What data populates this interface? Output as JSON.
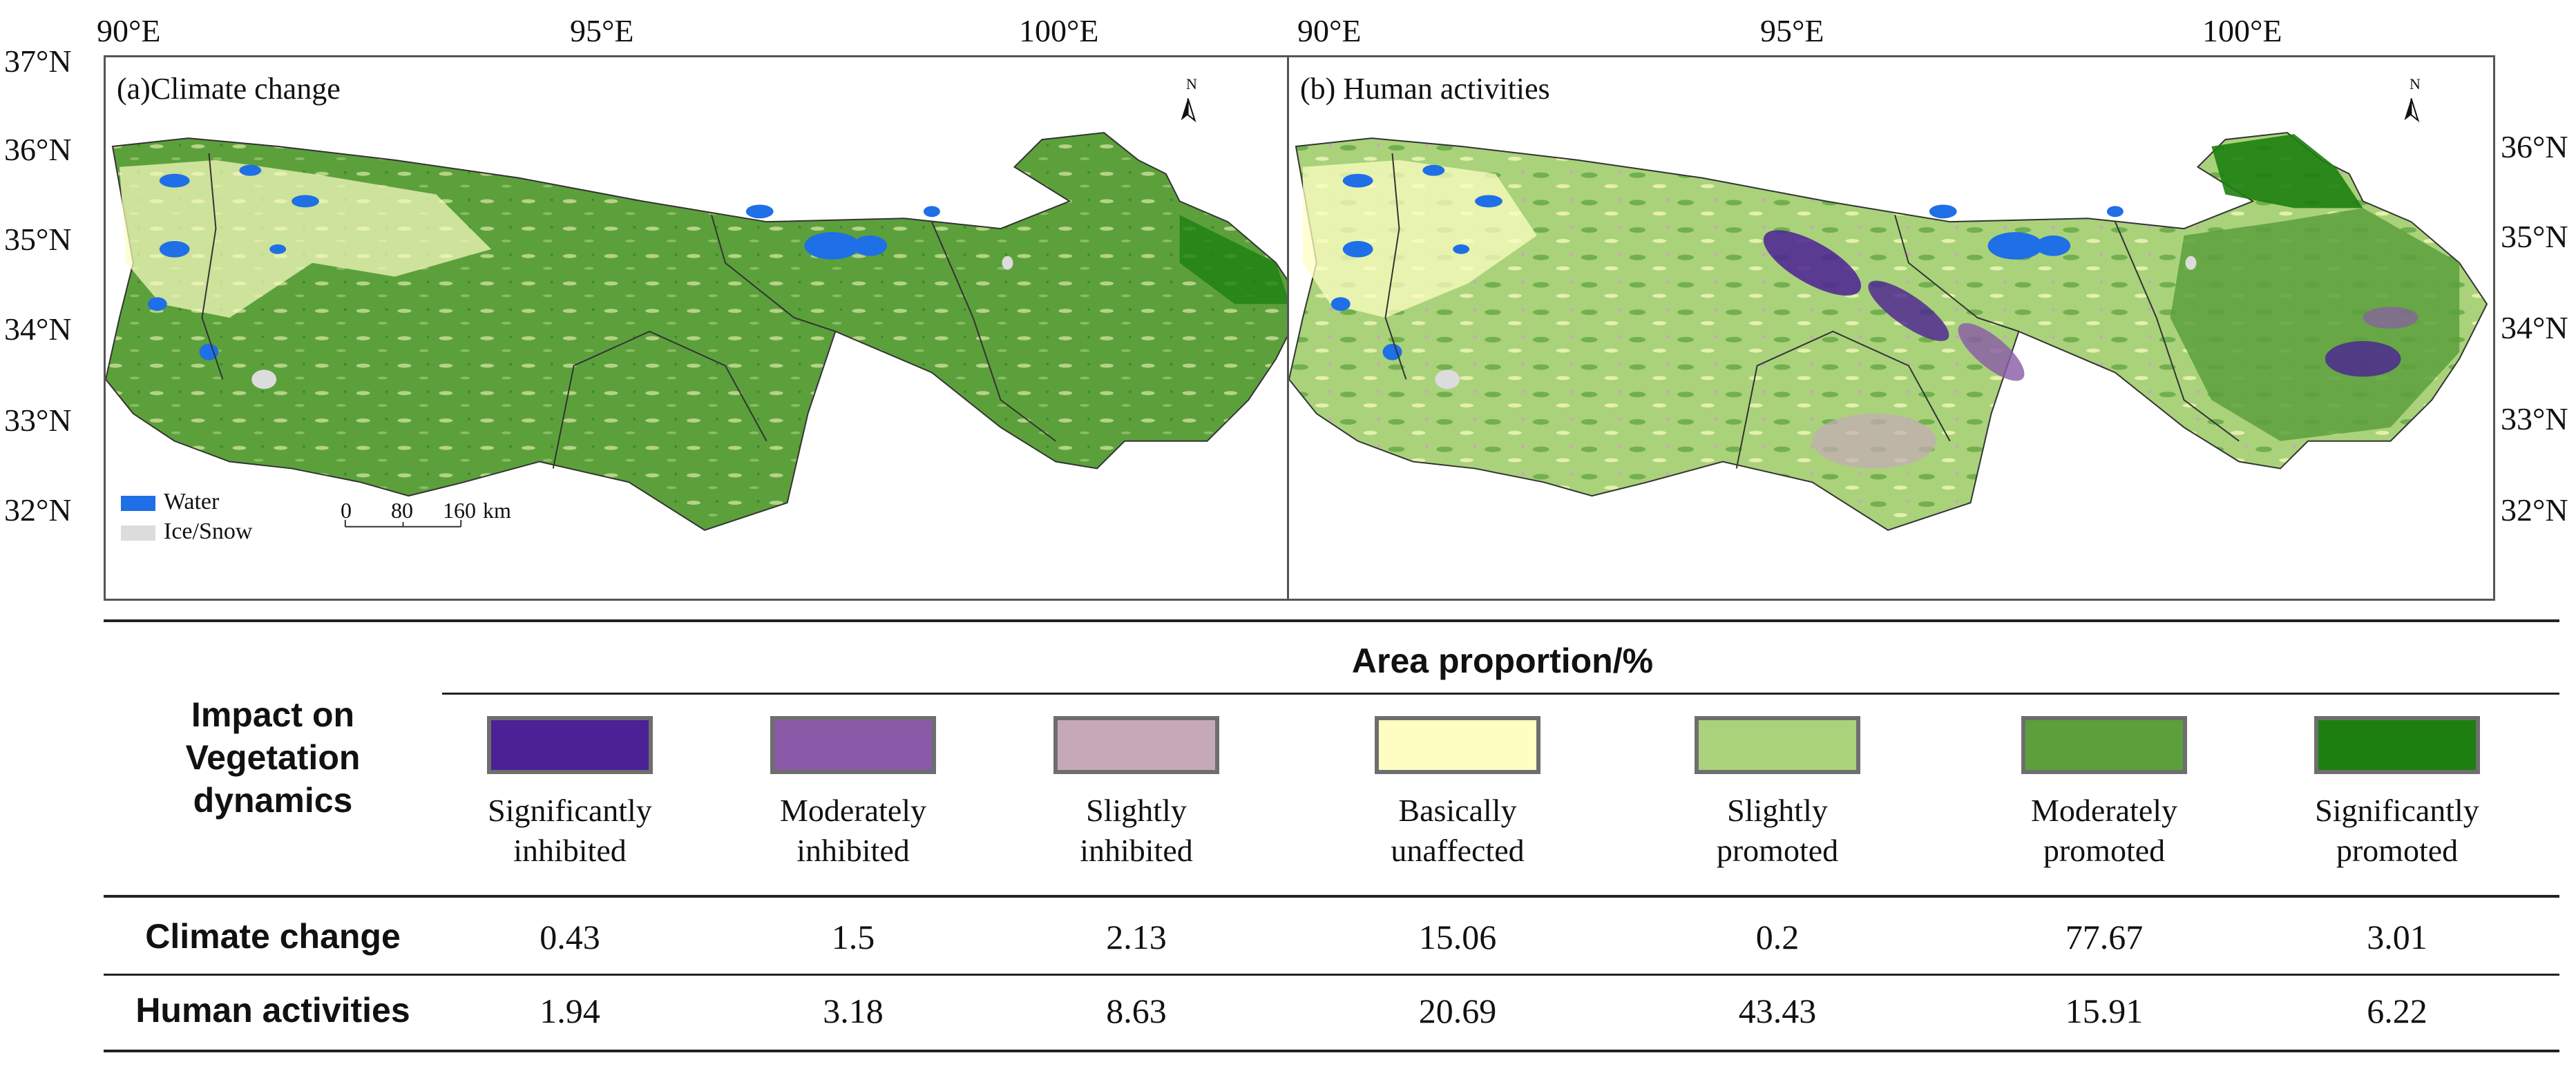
{
  "maps": {
    "panel_a": {
      "title": "(a)Climate change"
    },
    "panel_b": {
      "title": "(b) Human activities"
    },
    "lon_ticks": [
      "90°E",
      "95°E",
      "100°E"
    ],
    "lat_ticks_left": [
      "37°N",
      "36°N",
      "35°N",
      "34°N",
      "33°N",
      "32°N"
    ],
    "lat_ticks_right": [
      "36°N",
      "35°N",
      "34°N",
      "33°N",
      "32°N"
    ],
    "north_label": "N",
    "legend": {
      "water": "Water",
      "ice_snow": "Ice/Snow",
      "water_color": "#1f6fe6",
      "ice_color": "#dcdcdc"
    },
    "scale_bar": {
      "labels": [
        "0",
        "80",
        "160"
      ],
      "unit": "km"
    }
  },
  "table": {
    "header": "Area proportion/%",
    "row_header": "Impact on Vegetation dynamics",
    "categories": [
      {
        "label_line1": "Significantly",
        "label_line2": "inhibited",
        "color": "#4b2195"
      },
      {
        "label_line1": "Moderately",
        "label_line2": "inhibited",
        "color": "#8a5aa8"
      },
      {
        "label_line1": "Slightly",
        "label_line2": "inhibited",
        "color": "#c6a9b9"
      },
      {
        "label_line1": "Basically",
        "label_line2": "unaffected",
        "color": "#fefdc2"
      },
      {
        "label_line1": "Slightly",
        "label_line2": "promoted",
        "color": "#a9d27b"
      },
      {
        "label_line1": "Moderately",
        "label_line2": "promoted",
        "color": "#5ca03c"
      },
      {
        "label_line1": "Significantly",
        "label_line2": "promoted",
        "color": "#1d7f10"
      }
    ],
    "rows": [
      {
        "label": "Climate change",
        "values": [
          "0.43",
          "1.5",
          "2.13",
          "15.06",
          "0.2",
          "77.67",
          "3.01"
        ]
      },
      {
        "label": "Human activities",
        "values": [
          "1.94",
          "3.18",
          "8.63",
          "20.69",
          "43.43",
          "15.91",
          "6.22"
        ]
      }
    ]
  }
}
